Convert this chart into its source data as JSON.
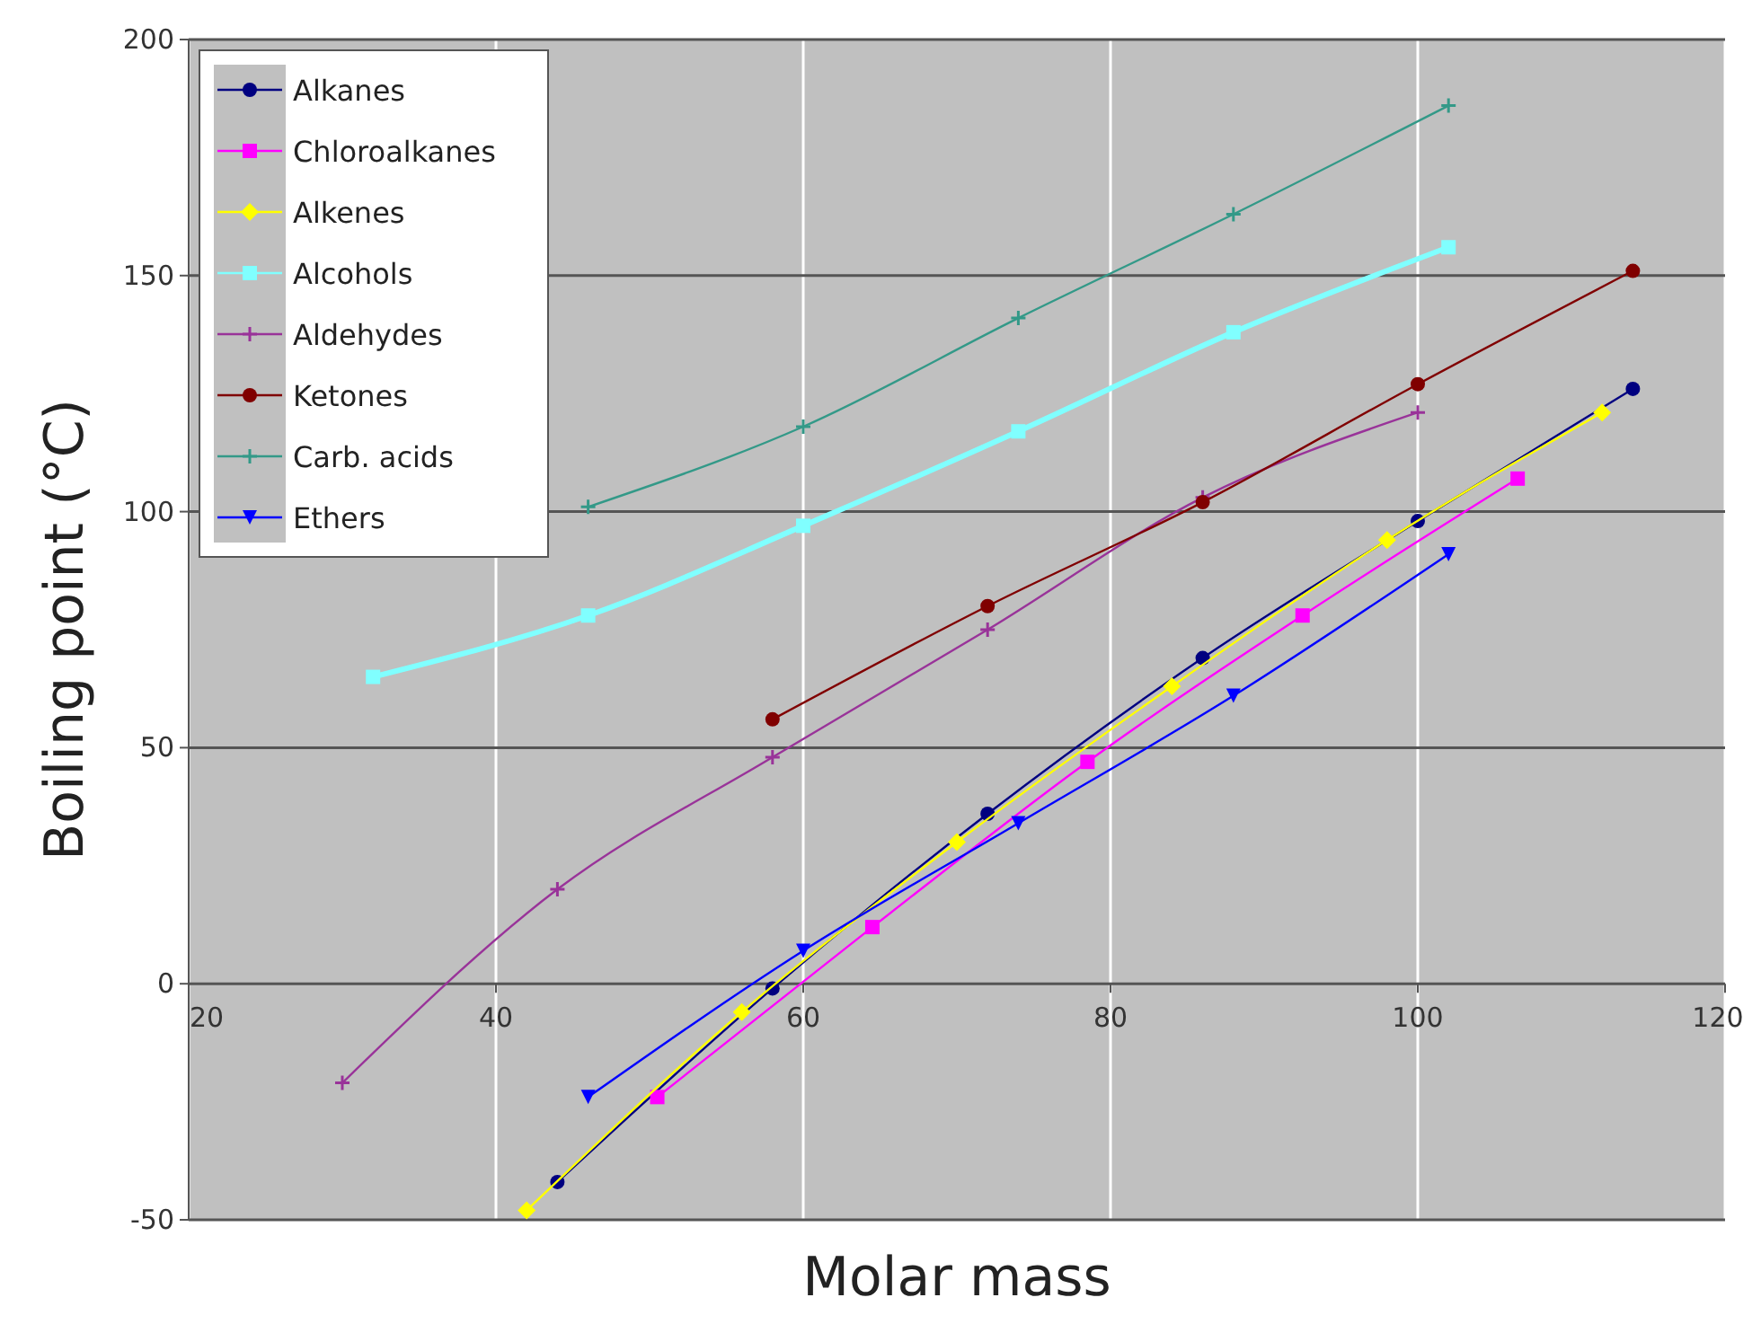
{
  "chart_data": {
    "type": "line",
    "xlabel": "Molar mass",
    "ylabel": "Boiling point (°C)",
    "xlim": [
      20,
      120
    ],
    "xticks": [
      20,
      40,
      60,
      80,
      100,
      120
    ],
    "ylim": [
      -50,
      200
    ],
    "yticks": [
      -50,
      0,
      50,
      100,
      150,
      200
    ],
    "grid": true,
    "legend": "top left",
    "series": [
      {
        "name": "Alkanes",
        "color": "#000080",
        "marker": "circle",
        "x": [
          44,
          58,
          72,
          86,
          100,
          114
        ],
        "values": [
          -42,
          -1,
          36,
          69,
          98,
          126
        ]
      },
      {
        "name": "Chloroalkanes",
        "color": "#ff00ff",
        "marker": "square",
        "x": [
          50.5,
          64.5,
          78.5,
          92.5,
          106.5
        ],
        "values": [
          -24,
          12,
          47,
          78,
          107
        ]
      },
      {
        "name": "Alkenes",
        "color": "#ffff00",
        "marker": "diamond",
        "x": [
          42,
          56,
          70,
          84,
          98,
          112
        ],
        "values": [
          -48,
          -6,
          30,
          63,
          94,
          121
        ]
      },
      {
        "name": "Alcohols",
        "color": "#80ffff",
        "marker": "square",
        "x": [
          32,
          46,
          60,
          74,
          88,
          102
        ],
        "values": [
          65,
          78,
          97,
          117,
          138,
          156
        ]
      },
      {
        "name": "Aldehydes",
        "color": "#993399",
        "marker": "cross",
        "x": [
          30,
          44,
          58,
          72,
          86,
          100
        ],
        "values": [
          -21,
          20,
          48,
          75,
          103,
          121
        ]
      },
      {
        "name": "Ketones",
        "color": "#800000",
        "marker": "circle",
        "x": [
          58,
          72,
          86,
          100,
          114
        ],
        "values": [
          56,
          80,
          102,
          127,
          151
        ]
      },
      {
        "name": "Carb. acids",
        "color": "#339988",
        "marker": "cross",
        "x": [
          46,
          60,
          74,
          88,
          102
        ],
        "values": [
          101,
          118,
          141,
          163,
          186
        ]
      },
      {
        "name": "Ethers",
        "color": "#0000ff",
        "marker": "triangle",
        "x": [
          46,
          60,
          74,
          88,
          102
        ],
        "values": [
          -24,
          7,
          34,
          61,
          91
        ]
      }
    ]
  }
}
